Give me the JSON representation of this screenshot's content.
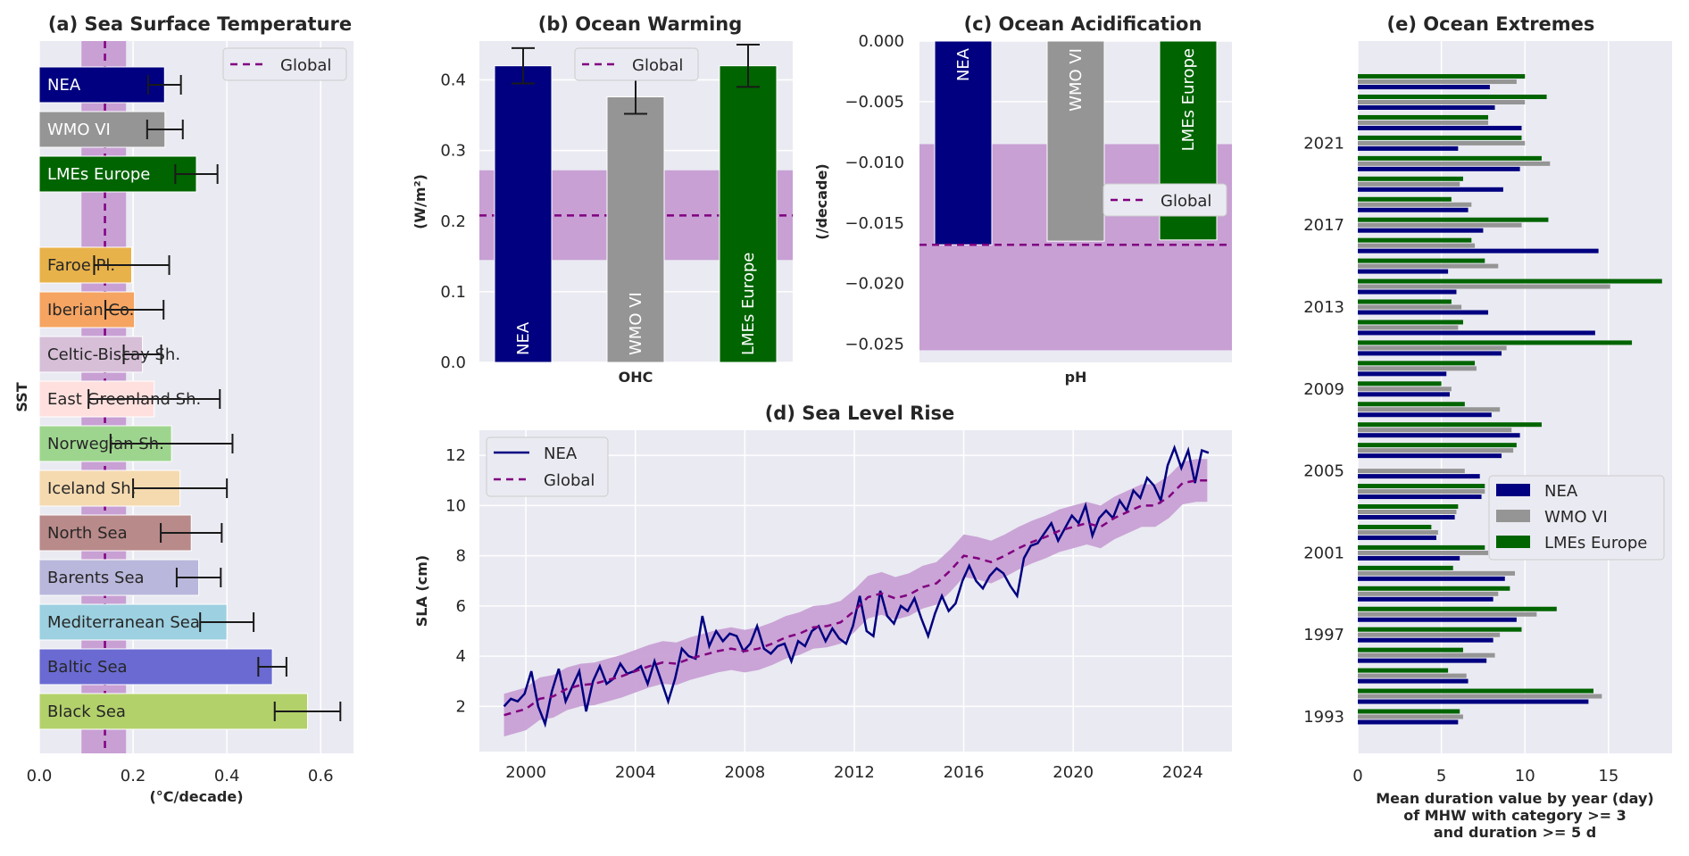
{
  "panel_titles": {
    "a": "(a) Sea Surface Temperature",
    "b": "(b) Ocean Warming",
    "c": "(c) Ocean Acidification",
    "d": "(d) Sea Level Rise",
    "e": "(e) Ocean Extremes"
  },
  "colors": {
    "NEA": "#000080",
    "WMO VI": "#959595",
    "LMEs Europe": "#006400",
    "global": "#800080",
    "band": "#c8a0d4",
    "axes_bg": "#eaeaf2"
  },
  "chart_data": [
    {
      "id": "a",
      "type": "bar",
      "orientation": "horizontal",
      "title": "(a) Sea Surface Temperature",
      "xlabel": "(°C/decade)",
      "ylabel": "SST",
      "xlim": [
        0,
        0.67
      ],
      "xticks": [
        0.0,
        0.2,
        0.4,
        0.6
      ],
      "xtick_labels": [
        "0.0",
        "0.2",
        "0.4",
        "0.6"
      ],
      "global": {
        "value": 0.14,
        "band": [
          0.09,
          0.185
        ],
        "label": "Global"
      },
      "categories": [
        "NEA",
        "WMO VI",
        "LMEs Europe",
        "Faroe Pl.",
        "Iberian Co.",
        "Celtic-Biscay Sh.",
        "East Greenland Sh.",
        "Norwegian Sh.",
        "Iceland Sh.",
        "North Sea",
        "Barents Sea",
        "Mediterranean Sea",
        "Baltic Sea",
        "Black Sea"
      ],
      "values": [
        0.267,
        0.268,
        0.335,
        0.197,
        0.203,
        0.22,
        0.245,
        0.282,
        0.3,
        0.324,
        0.34,
        0.4,
        0.497,
        0.572
      ],
      "errors": [
        0.035,
        0.038,
        0.045,
        0.08,
        0.062,
        0.04,
        0.14,
        0.13,
        0.1,
        0.065,
        0.047,
        0.057,
        0.03,
        0.07
      ],
      "bar_colors": [
        "#000080",
        "#959595",
        "#006400",
        "#e8b24a",
        "#f5a462",
        "#d7bfd8",
        "#ffe0de",
        "#9ed58e",
        "#f5dab0",
        "#b98a8a",
        "#b9b7db",
        "#9dd0e0",
        "#6a6ad2",
        "#b3d16b"
      ],
      "label_colors": [
        "#ffffff",
        "#ffffff",
        "#ffffff",
        "#262626",
        "#262626",
        "#262626",
        "#262626",
        "#262626",
        "#262626",
        "#262626",
        "#262626",
        "#262626",
        "#262626",
        "#262626"
      ]
    },
    {
      "id": "b",
      "type": "bar",
      "title": "(b) Ocean Warming",
      "ylabel": "(W/m²)",
      "xlabel": "OHC",
      "ylim": [
        0,
        0.455
      ],
      "yticks": [
        0.0,
        0.1,
        0.2,
        0.3,
        0.4
      ],
      "ytick_labels": [
        "0.0",
        "0.1",
        "0.2",
        "0.3",
        "0.4"
      ],
      "categories": [
        "NEA",
        "WMO VI",
        "LMEs Europe"
      ],
      "values": [
        0.42,
        0.376,
        0.42
      ],
      "errors": [
        0.025,
        0.024,
        0.03
      ],
      "global": {
        "value": 0.208,
        "band": [
          0.145,
          0.272
        ],
        "label": "Global"
      }
    },
    {
      "id": "c",
      "type": "bar",
      "title": "(c) Ocean Acidification",
      "ylabel": "(/decade)",
      "xlabel": "pH",
      "ylim": [
        -0.0265,
        0.0
      ],
      "yticks": [
        0.0,
        -0.005,
        -0.01,
        -0.015,
        -0.02,
        -0.025
      ],
      "ytick_labels": [
        "0.000",
        "−0.005",
        "−0.010",
        "−0.015",
        "−0.020",
        "−0.025"
      ],
      "categories": [
        "NEA",
        "WMO VI",
        "LMEs Europe"
      ],
      "values": [
        -0.0168,
        -0.0165,
        -0.0164
      ],
      "global": {
        "value": -0.0168,
        "band": [
          -0.0085,
          -0.0255
        ],
        "label": "Global"
      }
    },
    {
      "id": "d",
      "type": "line",
      "title": "(d) Sea Level Rise",
      "ylabel": "SLA (cm)",
      "xlim": [
        1998.3,
        2025.8
      ],
      "ylim": [
        0.2,
        13.0
      ],
      "xticks": [
        2000,
        2004,
        2008,
        2012,
        2016,
        2020,
        2024
      ],
      "xtick_labels": [
        "2000",
        "2004",
        "2008",
        "2012",
        "2016",
        "2020",
        "2024"
      ],
      "yticks": [
        2,
        4,
        6,
        8,
        10,
        12
      ],
      "ytick_labels": [
        "2",
        "4",
        "6",
        "8",
        "10",
        "12"
      ],
      "band_halfwidth": 0.85,
      "series": [
        {
          "name": "NEA",
          "style": "solid",
          "x": [
            1999.2,
            1999.45,
            1999.7,
            1999.95,
            2000.2,
            2000.45,
            2000.7,
            2000.95,
            2001.2,
            2001.45,
            2001.7,
            2001.95,
            2002.2,
            2002.45,
            2002.7,
            2002.95,
            2003.2,
            2003.45,
            2003.7,
            2003.95,
            2004.2,
            2004.45,
            2004.7,
            2004.95,
            2005.2,
            2005.45,
            2005.7,
            2005.95,
            2006.2,
            2006.45,
            2006.7,
            2006.95,
            2007.2,
            2007.45,
            2007.7,
            2007.95,
            2008.2,
            2008.45,
            2008.7,
            2008.95,
            2009.2,
            2009.45,
            2009.7,
            2009.95,
            2010.2,
            2010.45,
            2010.7,
            2010.95,
            2011.2,
            2011.45,
            2011.7,
            2011.95,
            2012.2,
            2012.45,
            2012.7,
            2012.95,
            2013.2,
            2013.45,
            2013.7,
            2013.95,
            2014.2,
            2014.45,
            2014.7,
            2014.95,
            2015.2,
            2015.45,
            2015.7,
            2015.95,
            2016.2,
            2016.45,
            2016.7,
            2016.95,
            2017.2,
            2017.45,
            2017.7,
            2017.95,
            2018.2,
            2018.45,
            2018.7,
            2018.95,
            2019.2,
            2019.45,
            2019.7,
            2019.95,
            2020.2,
            2020.45,
            2020.7,
            2020.95,
            2021.2,
            2021.45,
            2021.7,
            2021.95,
            2022.2,
            2022.45,
            2022.7,
            2022.95,
            2023.2,
            2023.45,
            2023.7,
            2023.95,
            2024.2,
            2024.45,
            2024.7,
            2024.95
          ],
          "values": [
            2.0,
            2.3,
            2.2,
            2.5,
            3.4,
            2.0,
            1.3,
            2.6,
            3.5,
            2.2,
            2.8,
            3.4,
            1.8,
            3.0,
            3.6,
            2.9,
            3.1,
            3.7,
            3.3,
            3.4,
            3.6,
            2.9,
            3.8,
            3.0,
            2.2,
            3.1,
            4.3,
            4.0,
            3.9,
            5.6,
            4.4,
            5.0,
            4.6,
            4.9,
            4.8,
            4.2,
            4.5,
            5.2,
            4.3,
            4.1,
            4.4,
            4.5,
            3.8,
            4.6,
            4.4,
            5.0,
            5.2,
            4.6,
            5.1,
            4.7,
            4.5,
            5.2,
            6.4,
            5.0,
            4.8,
            6.6,
            5.6,
            5.3,
            6.0,
            5.8,
            6.3,
            5.5,
            4.8,
            5.7,
            6.4,
            5.8,
            6.1,
            7.0,
            7.6,
            7.0,
            6.7,
            7.2,
            7.5,
            7.3,
            6.8,
            6.4,
            7.9,
            8.4,
            8.5,
            8.9,
            9.3,
            8.6,
            9.1,
            9.6,
            9.3,
            10.0,
            8.8,
            9.5,
            9.8,
            9.5,
            10.2,
            9.8,
            10.6,
            10.3,
            11.1,
            10.8,
            10.2,
            11.6,
            12.3,
            11.5,
            12.2,
            10.9,
            12.2,
            12.1
          ]
        },
        {
          "name": "Global",
          "style": "dashed",
          "x": [
            1999.2,
            2000.0,
            2000.5,
            2001.0,
            2001.5,
            2002.0,
            2002.5,
            2003.0,
            2003.5,
            2004.0,
            2004.5,
            2005.0,
            2005.5,
            2006.0,
            2006.5,
            2007.0,
            2007.5,
            2008.0,
            2008.5,
            2009.0,
            2009.5,
            2010.0,
            2010.5,
            2011.0,
            2011.5,
            2012.0,
            2012.5,
            2013.0,
            2013.5,
            2014.0,
            2014.5,
            2015.0,
            2015.5,
            2016.0,
            2016.5,
            2017.0,
            2017.5,
            2018.0,
            2018.5,
            2019.0,
            2019.5,
            2020.0,
            2020.5,
            2021.0,
            2021.5,
            2022.0,
            2022.5,
            2023.0,
            2023.5,
            2024.0,
            2024.5,
            2024.9
          ],
          "values": [
            1.65,
            1.9,
            2.3,
            2.4,
            2.7,
            2.85,
            2.9,
            3.05,
            3.2,
            3.4,
            3.6,
            3.75,
            3.7,
            3.9,
            4.05,
            4.2,
            4.3,
            4.2,
            4.3,
            4.5,
            4.75,
            4.9,
            5.15,
            5.2,
            5.35,
            5.8,
            6.35,
            6.5,
            6.3,
            6.45,
            6.75,
            6.9,
            7.4,
            8.0,
            7.9,
            7.75,
            8.0,
            8.3,
            8.55,
            8.75,
            9.0,
            9.15,
            9.3,
            9.15,
            9.5,
            9.75,
            10.0,
            10.0,
            10.35,
            10.9,
            11.0,
            11.0
          ]
        }
      ]
    },
    {
      "id": "e",
      "type": "bar",
      "orientation": "horizontal",
      "title": "(e) Ocean Extremes",
      "xlabel_lines": [
        "Mean duration value by year (day)",
        "of MHW with category >= 3",
        "and duration >= 5 d"
      ],
      "xlim": [
        0,
        18.8
      ],
      "xticks": [
        0,
        5,
        10,
        15
      ],
      "xtick_labels": [
        "0",
        "5",
        "10",
        "15"
      ],
      "ytick_labels": [
        "1993",
        "1997",
        "2001",
        "2005",
        "2009",
        "2013",
        "2017",
        "2021"
      ],
      "ytick_years": [
        1993,
        1997,
        2001,
        2005,
        2009,
        2013,
        2017,
        2021
      ],
      "years": [
        1993,
        1994,
        1995,
        1996,
        1997,
        1998,
        1999,
        2000,
        2001,
        2002,
        2003,
        2004,
        2005,
        2006,
        2007,
        2008,
        2009,
        2010,
        2011,
        2012,
        2013,
        2014,
        2015,
        2016,
        2017,
        2018,
        2019,
        2020,
        2021,
        2022,
        2023,
        2024
      ],
      "series": [
        {
          "name": "NEA",
          "values": [
            6.0,
            13.8,
            6.6,
            7.7,
            8.1,
            9.5,
            8.1,
            8.8,
            6.1,
            4.7,
            5.8,
            7.4,
            7.3,
            8.6,
            9.7,
            8.0,
            5.5,
            5.3,
            8.6,
            14.2,
            7.8,
            5.9,
            5.4,
            14.4,
            7.5,
            6.6,
            8.7,
            9.7,
            6.0,
            9.8,
            8.2,
            7.9
          ]
        },
        {
          "name": "WMO VI",
          "values": [
            6.3,
            14.6,
            6.5,
            8.2,
            8.5,
            10.7,
            8.4,
            9.4,
            7.8,
            4.8,
            5.9,
            7.6,
            6.4,
            9.3,
            9.2,
            8.5,
            5.6,
            7.1,
            8.9,
            6.0,
            6.2,
            15.1,
            8.4,
            7.0,
            9.8,
            6.8,
            6.1,
            11.5,
            10.0,
            7.8,
            10.0,
            9.5
          ]
        },
        {
          "name": "LMEs Europe",
          "values": [
            6.1,
            14.1,
            5.4,
            6.3,
            9.8,
            11.9,
            9.1,
            5.7,
            7.6,
            4.4,
            6.0,
            7.6,
            0.0,
            9.5,
            11.0,
            6.4,
            5.0,
            7.0,
            16.4,
            6.3,
            5.6,
            18.2,
            7.6,
            6.8,
            11.4,
            5.6,
            6.3,
            11.0,
            9.8,
            7.8,
            11.3,
            10.0
          ]
        }
      ]
    }
  ]
}
